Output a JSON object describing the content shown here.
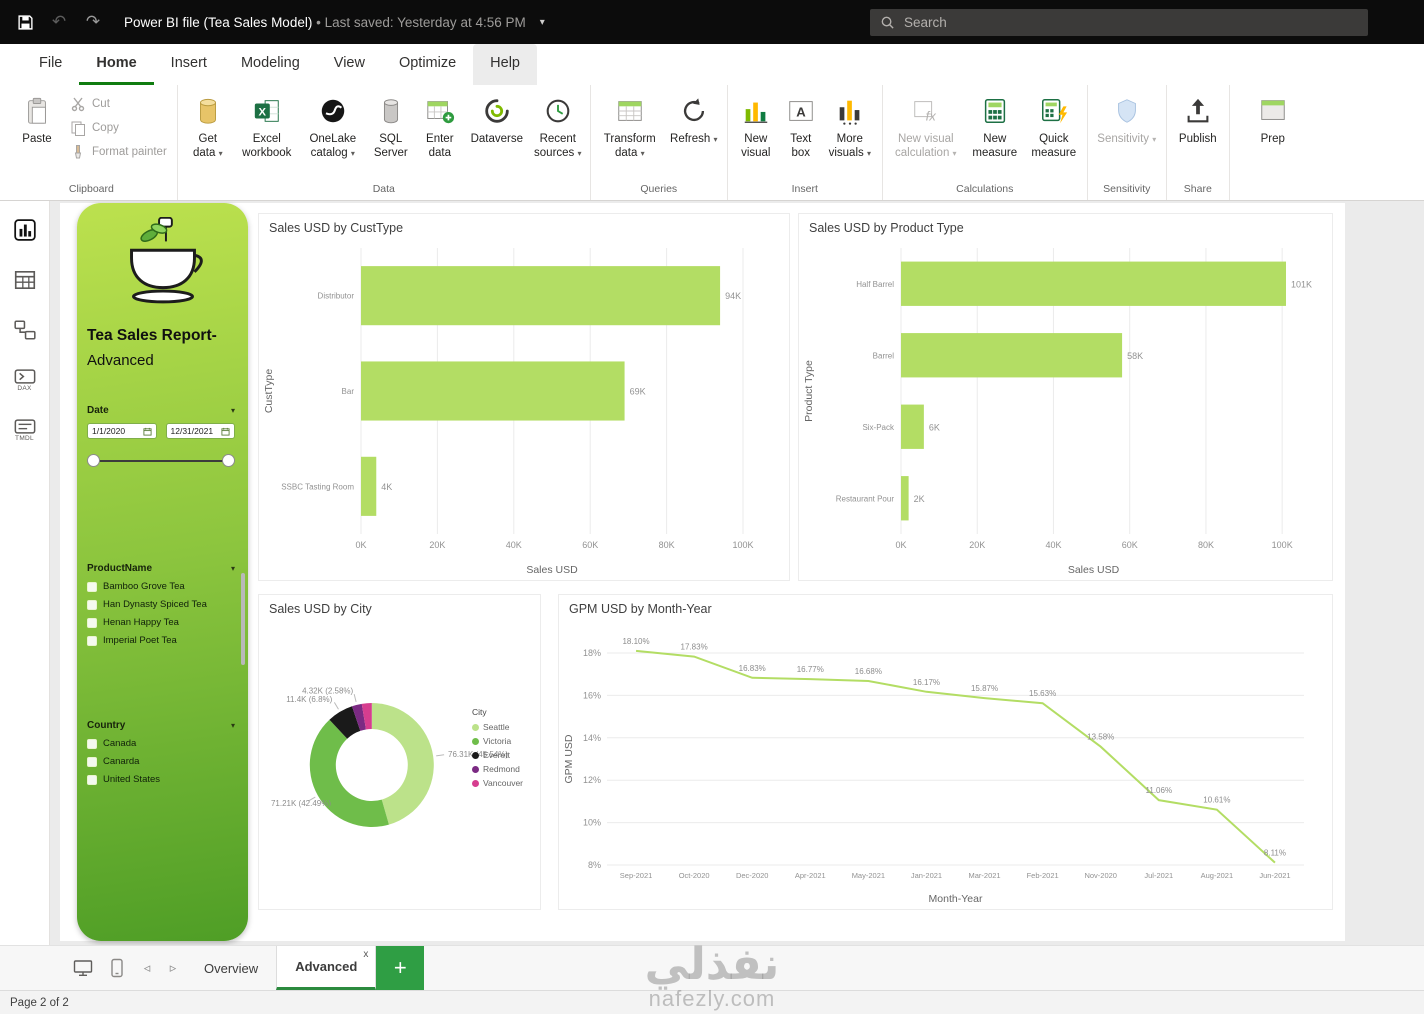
{
  "titlebar": {
    "title": "Power BI file (Tea Sales Model)",
    "bullet": "•",
    "subtitle": "Last saved: Yesterday at 4:56 PM",
    "search_placeholder": "Search"
  },
  "menu": {
    "file": "File",
    "home": "Home",
    "insert": "Insert",
    "modeling": "Modeling",
    "view": "View",
    "optimize": "Optimize",
    "help": "Help"
  },
  "ribbon": {
    "clipboard": {
      "label": "Clipboard",
      "paste": "Paste",
      "cut": "Cut",
      "copy": "Copy",
      "format_painter": "Format painter"
    },
    "data": {
      "label": "Data",
      "get_data": "Get data",
      "excel": "Excel workbook",
      "onelake": "OneLake catalog",
      "sql": "SQL Server",
      "enter_data": "Enter data",
      "dataverse": "Dataverse",
      "recent": "Recent sources"
    },
    "queries": {
      "label": "Queries",
      "transform": "Transform data",
      "refresh": "Refresh"
    },
    "insert": {
      "label": "Insert",
      "new_visual": "New visual",
      "text_box": "Text box",
      "more_visuals": "More visuals"
    },
    "calculations": {
      "label": "Calculations",
      "visual_calc": "New visual calculation",
      "new_measure": "New measure",
      "quick_measure": "Quick measure"
    },
    "sensitivity": {
      "label": "Sensitivity",
      "button": "Sensitivity"
    },
    "share": {
      "label": "Share",
      "publish": "Publish"
    },
    "overflow": "Prep"
  },
  "view_rail": {
    "dax": "DAX",
    "tmdl": "TMDL"
  },
  "filter_panel": {
    "title_line1": "Tea Sales Report-",
    "title_line2": "Advanced",
    "date_label": "Date",
    "date_start": "1/1/2020",
    "date_end": "12/31/2021",
    "product_label": "ProductName",
    "products": [
      "Bamboo Grove Tea",
      "Han Dynasty Spiced Tea",
      "Henan Happy Tea",
      "Imperial Poet Tea"
    ],
    "country_label": "Country",
    "countries": [
      "Canada",
      "Canarda",
      "United States"
    ]
  },
  "chart_data": [
    {
      "type": "bar",
      "orientation": "horizontal",
      "title": "Sales USD by CustType",
      "categories": [
        "Distributor",
        "Bar",
        "SSBC Tasting Room"
      ],
      "values": [
        94,
        69,
        4
      ],
      "value_labels": [
        "94K",
        "69K",
        "4K"
      ],
      "xlabel": "Sales USD",
      "ylabel": "CustType",
      "xticks": [
        "0K",
        "20K",
        "40K",
        "60K",
        "80K",
        "100K"
      ],
      "xlim": [
        0,
        100
      ],
      "grid": true,
      "bar_color": "#b3dd64"
    },
    {
      "type": "bar",
      "orientation": "horizontal",
      "title": "Sales USD by Product Type",
      "categories": [
        "Half Barrel",
        "Barrel",
        "Six-Pack",
        "Restaurant Pour"
      ],
      "values": [
        101,
        58,
        6,
        2
      ],
      "value_labels": [
        "101K",
        "58K",
        "6K",
        "2K"
      ],
      "xlabel": "Sales USD",
      "ylabel": "Product Type",
      "xticks": [
        "0K",
        "20K",
        "40K",
        "60K",
        "80K",
        "100K"
      ],
      "xlim": [
        0,
        100
      ],
      "grid": true,
      "bar_color": "#b3dd64"
    },
    {
      "type": "pie",
      "donut": true,
      "title": "Sales USD by City",
      "legend_title": "City",
      "legend_position": "right",
      "slices": [
        {
          "name": "Seattle",
          "label": "76.31K (45.54%)",
          "value_k": 76.31,
          "pct": 45.54,
          "color": "#bce28a"
        },
        {
          "name": "Victoria",
          "label": "71.21K (42.49%)",
          "value_k": 71.21,
          "pct": 42.49,
          "color": "#6fbd4a"
        },
        {
          "name": "Everett",
          "label": "11.4K (6.8%)",
          "value_k": 11.4,
          "pct": 6.8,
          "color": "#1a1a1a"
        },
        {
          "name": "Redmond",
          "label": "4.32K (2.58%)",
          "value_k": 4.32,
          "pct": 2.58,
          "color": "#7b2a83"
        },
        {
          "name": "Vancouver",
          "label": "",
          "pct": 2.59,
          "color": "#d63d8f"
        }
      ]
    },
    {
      "type": "line",
      "title": "GPM USD by Month-Year",
      "categories": [
        "Sep-2021",
        "Oct-2020",
        "Dec-2020",
        "Apr-2021",
        "May-2021",
        "Jan-2021",
        "Mar-2021",
        "Feb-2021",
        "Nov-2020",
        "Jul-2021",
        "Aug-2021",
        "Jun-2021"
      ],
      "values": [
        18.1,
        17.83,
        16.83,
        16.77,
        16.68,
        16.17,
        15.87,
        15.63,
        13.58,
        11.06,
        10.61,
        8.11
      ],
      "point_labels": [
        "18.10%",
        "17.83%",
        "16.83%",
        "16.77%",
        "16.68%",
        "16.17%",
        "15.87%",
        "15.63%",
        "13.58%",
        "11.06%",
        "10.61%",
        "8.11%"
      ],
      "xlabel": "Month-Year",
      "ylabel": "GPM USD",
      "yticks": [
        "8%",
        "10%",
        "12%",
        "14%",
        "16%",
        "18%"
      ],
      "ylim": [
        8,
        18
      ],
      "grid": true,
      "line_color": "#b3dd64"
    }
  ],
  "pages": {
    "overview": "Overview",
    "advanced": "Advanced",
    "close_glyph": "x",
    "status": "Page 2 of 2"
  },
  "watermark": {
    "line1": "نفذلي",
    "line2": "nafezly.com"
  }
}
